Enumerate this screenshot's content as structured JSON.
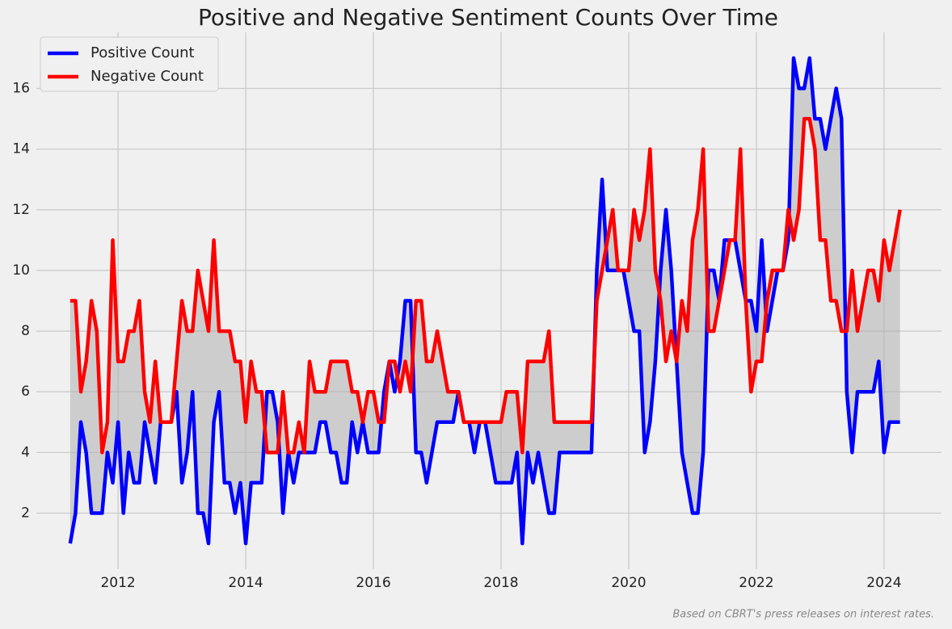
{
  "chart_data": {
    "type": "line",
    "title": "Positive and Negative Sentiment Counts Over Time",
    "annotation": "Based on CBRT's press releases on interest rates.",
    "x": [
      "2011-04",
      "2011-05",
      "2011-06",
      "2011-07",
      "2011-08",
      "2011-09",
      "2011-10",
      "2011-11",
      "2011-12",
      "2012-01",
      "2012-02",
      "2012-03",
      "2012-04",
      "2012-05",
      "2012-06",
      "2012-07",
      "2012-08",
      "2012-09",
      "2012-10",
      "2012-11",
      "2012-12",
      "2013-01",
      "2013-02",
      "2013-03",
      "2013-04",
      "2013-05",
      "2013-06",
      "2013-07",
      "2013-08",
      "2013-09",
      "2013-10",
      "2013-11",
      "2013-12",
      "2014-01",
      "2014-02",
      "2014-03",
      "2014-04",
      "2014-05",
      "2014-06",
      "2014-07",
      "2014-08",
      "2014-09",
      "2014-10",
      "2014-11",
      "2014-12",
      "2015-01",
      "2015-02",
      "2015-03",
      "2015-04",
      "2015-05",
      "2015-06",
      "2015-07",
      "2015-08",
      "2015-09",
      "2015-10",
      "2015-11",
      "2015-12",
      "2016-01",
      "2016-02",
      "2016-03",
      "2016-04",
      "2016-05",
      "2016-06",
      "2016-07",
      "2016-08",
      "2016-09",
      "2016-10",
      "2016-11",
      "2016-12",
      "2017-01",
      "2017-02",
      "2017-03",
      "2017-04",
      "2017-05",
      "2017-06",
      "2017-07",
      "2017-08",
      "2017-09",
      "2017-10",
      "2017-11",
      "2017-12",
      "2018-01",
      "2018-02",
      "2018-03",
      "2018-04",
      "2018-05",
      "2018-06",
      "2018-07",
      "2018-08",
      "2018-09",
      "2018-10",
      "2018-11",
      "2018-12",
      "2019-01",
      "2019-02",
      "2019-03",
      "2019-04",
      "2019-05",
      "2019-06",
      "2019-07",
      "2019-08",
      "2019-09",
      "2019-10",
      "2019-11",
      "2019-12",
      "2020-01",
      "2020-02",
      "2020-03",
      "2020-04",
      "2020-05",
      "2020-06",
      "2020-07",
      "2020-08",
      "2020-09",
      "2020-10",
      "2020-11",
      "2020-12",
      "2021-01",
      "2021-02",
      "2021-03",
      "2021-04",
      "2021-05",
      "2021-06",
      "2021-07",
      "2021-08",
      "2021-09",
      "2021-10",
      "2021-11",
      "2021-12",
      "2022-01",
      "2022-02",
      "2022-03",
      "2022-04",
      "2022-05",
      "2022-06",
      "2022-07",
      "2022-08",
      "2022-09",
      "2022-10",
      "2022-11",
      "2022-12",
      "2023-01",
      "2023-02",
      "2023-03",
      "2023-04",
      "2023-05",
      "2023-06",
      "2023-07",
      "2023-08",
      "2023-09",
      "2023-10",
      "2023-11",
      "2023-12",
      "2024-01",
      "2024-02",
      "2024-03",
      "2024-04"
    ],
    "series": [
      {
        "name": "Positive Count",
        "color": "#0000ff",
        "values": [
          1,
          2,
          5,
          4,
          2,
          2,
          2,
          4,
          3,
          5,
          2,
          4,
          3,
          3,
          5,
          4,
          3,
          5,
          5,
          5,
          6,
          3,
          4,
          6,
          2,
          2,
          1,
          5,
          6,
          3,
          3,
          2,
          3,
          1,
          3,
          3,
          3,
          6,
          6,
          5,
          2,
          4,
          3,
          4,
          4,
          4,
          4,
          5,
          5,
          4,
          4,
          3,
          3,
          5,
          4,
          5,
          4,
          4,
          4,
          6,
          7,
          6,
          7,
          9,
          9,
          4,
          4,
          3,
          4,
          5,
          5,
          5,
          5,
          6,
          5,
          5,
          4,
          5,
          5,
          4,
          3,
          3,
          3,
          3,
          4,
          1,
          4,
          3,
          4,
          3,
          2,
          2,
          4,
          4,
          4,
          4,
          4,
          4,
          4,
          10,
          13,
          10,
          10,
          10,
          10,
          9,
          8,
          8,
          4,
          5,
          7,
          10,
          12,
          10,
          7,
          4,
          3,
          2,
          2,
          4,
          10,
          10,
          9,
          11,
          11,
          11,
          10,
          9,
          9,
          8,
          11,
          8,
          9,
          10,
          10,
          11,
          17,
          16,
          16,
          17,
          15,
          15,
          14,
          15,
          16,
          15,
          6,
          4,
          6,
          6,
          6,
          6,
          7,
          4,
          5,
          5,
          5
        ]
      },
      {
        "name": "Negative Count",
        "color": "#ff0000",
        "values": [
          9,
          9,
          6,
          7,
          9,
          8,
          4,
          5,
          11,
          7,
          7,
          8,
          8,
          9,
          6,
          5,
          7,
          5,
          5,
          5,
          7,
          9,
          8,
          8,
          10,
          9,
          8,
          11,
          8,
          8,
          8,
          7,
          7,
          5,
          7,
          6,
          6,
          4,
          4,
          4,
          6,
          4,
          4,
          5,
          4,
          7,
          6,
          6,
          6,
          7,
          7,
          7,
          7,
          6,
          6,
          5,
          6,
          6,
          5,
          5,
          7,
          7,
          6,
          7,
          6,
          9,
          9,
          7,
          7,
          8,
          7,
          6,
          6,
          6,
          5,
          5,
          5,
          5,
          5,
          5,
          5,
          5,
          6,
          6,
          6,
          4,
          7,
          7,
          7,
          7,
          8,
          5,
          5,
          5,
          5,
          5,
          5,
          5,
          5,
          9,
          10,
          11,
          12,
          10,
          10,
          10,
          12,
          11,
          12,
          14,
          10,
          9,
          7,
          8,
          7,
          9,
          8,
          11,
          12,
          14,
          8,
          8,
          9,
          10,
          11,
          11,
          14,
          9,
          6,
          7,
          7,
          9,
          10,
          10,
          10,
          12,
          11,
          12,
          15,
          15,
          14,
          11,
          11,
          9,
          9,
          8,
          8,
          10,
          8,
          9,
          10,
          10,
          9,
          11,
          10,
          11,
          12
        ]
      }
    ],
    "fill_between": true,
    "xlim": [
      2010.72,
      2024.9
    ],
    "xticks": [
      2012,
      2014,
      2016,
      2018,
      2020,
      2022,
      2024
    ],
    "ylim": [
      0.15,
      17.85
    ],
    "yticks": [
      2,
      4,
      6,
      8,
      10,
      12,
      14,
      16
    ],
    "grid": true,
    "legend": "upper left"
  }
}
